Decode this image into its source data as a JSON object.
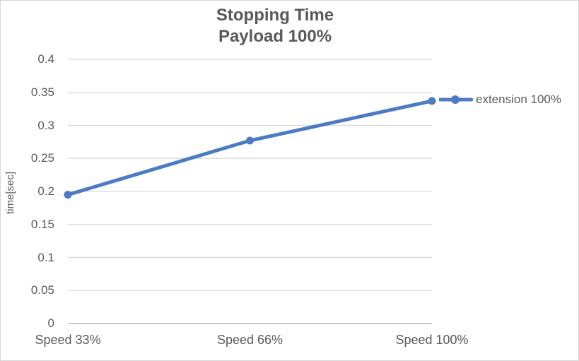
{
  "window": {
    "background": "#ffffff",
    "border_color": "#d7d7d7"
  },
  "chart_data": {
    "type": "line",
    "title": "Stopping Time",
    "subtitle": "Payload 100%",
    "ylabel": "time[sec]",
    "xlabel": "",
    "categories": [
      "Speed 33%",
      "Speed 66%",
      "Speed 100%"
    ],
    "series": [
      {
        "name": "extension 100%",
        "values": [
          0.195,
          0.277,
          0.337
        ],
        "color": "#4c7bc4"
      }
    ],
    "ylim": [
      0,
      0.4
    ],
    "ytick_step": 0.05,
    "ytick_labels": [
      "0",
      "0.05",
      "0.1",
      "0.15",
      "0.2",
      "0.25",
      "0.3",
      "0.35",
      "0.4"
    ],
    "grid": true,
    "gridline_color": "#d9d9d9",
    "axis_line_color": "#cccccc",
    "text_color": "#595959",
    "legend": {
      "position": "right",
      "entries": [
        "extension 100%"
      ]
    }
  }
}
